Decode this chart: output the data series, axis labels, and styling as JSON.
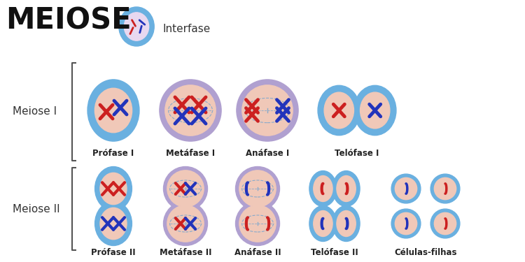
{
  "title": "MEIOSE",
  "interfase_label": "Interfase",
  "meiose1_label": "Meiose I",
  "meiose2_label": "Meiose II",
  "row1_labels": [
    "Prófase I",
    "Metáfase I",
    "Anáfase I",
    "Telófase I"
  ],
  "row2_labels": [
    "Prófase II",
    "Metáfase II",
    "Anáfase II",
    "Telófase II",
    "Células-filhas"
  ],
  "bg_color": "#ffffff",
  "cell_outer_blue": "#6ab0e0",
  "cell_outer_purple": "#b0a0d0",
  "cell_inner_peach": "#f0c8b8",
  "cell_inner_light": "#e8d8f0",
  "chrom_red": "#cc2020",
  "chrom_blue": "#2233bb",
  "label_fontsize": 8.5,
  "title_fontsize": 30
}
